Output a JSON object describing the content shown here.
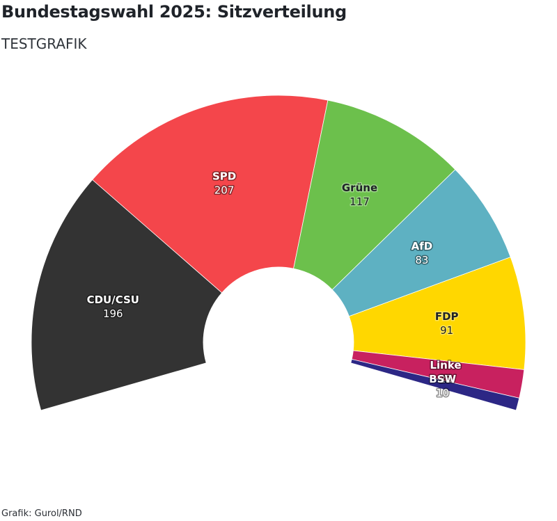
{
  "title": "Bundestagswahl 2025: Sitzverteilung",
  "subtitle": "TESTGRAFIK",
  "credit": "Grafik: Gurol/RND",
  "chart_data": {
    "type": "pie",
    "variant": "parliament-semicircle",
    "categories": [
      "CDU/CSU",
      "SPD",
      "Grüne",
      "AfD",
      "FDP",
      "Linke",
      "BSW"
    ],
    "values": [
      196,
      207,
      117,
      83,
      91,
      23,
      10
    ],
    "colors": [
      "#333333",
      "#f4464b",
      "#6cc04c",
      "#5eb1c2",
      "#ffd700",
      "#c8215f",
      "#2c2785"
    ],
    "legend": "none",
    "labels_on_segments": true
  }
}
